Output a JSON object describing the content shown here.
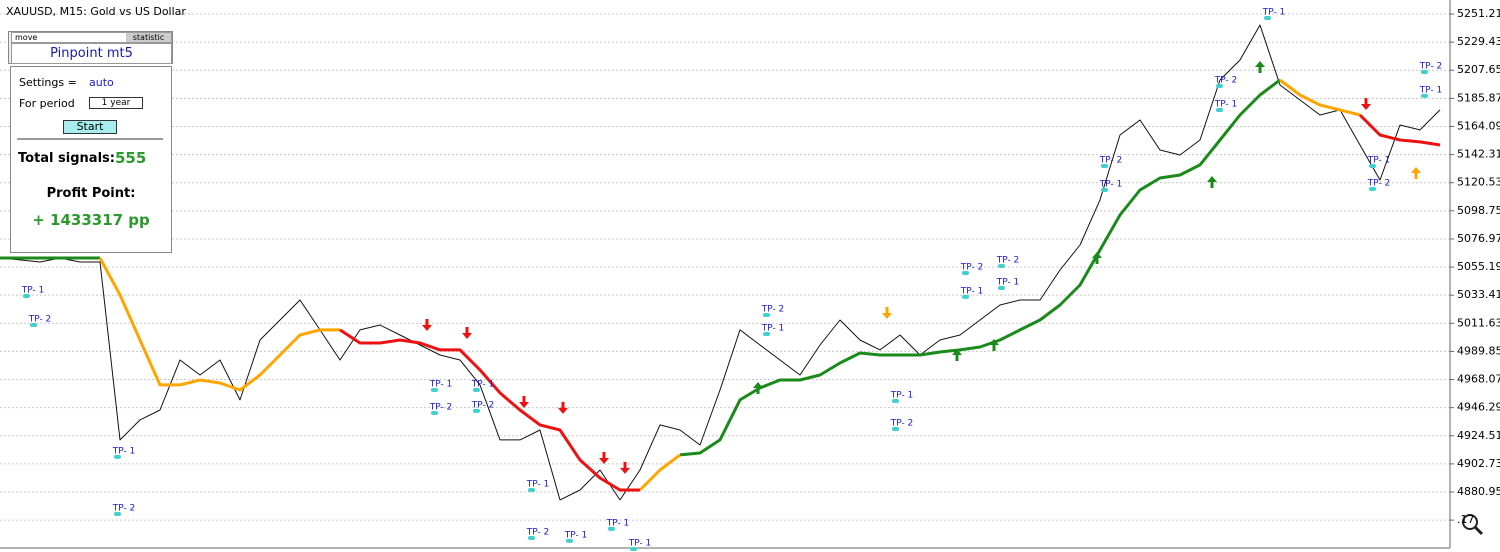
{
  "chart_data": {
    "type": "line",
    "title": "XAUUSD, M15:  Gold vs US Dollar",
    "xlim": [
      0,
      145
    ],
    "ylim": [
      4837.58,
      5262.05
    ],
    "yticks": [
      5251.21,
      5229.43,
      5207.65,
      5185.87,
      5164.09,
      5142.31,
      5120.53,
      5098.75,
      5076.97,
      5055.19,
      5033.41,
      5011.63,
      4989.85,
      4968.07,
      4946.29,
      4924.51,
      4902.73,
      4880.95,
      {
        "value": 4859.17,
        "label": ".17"
      }
    ],
    "grid": true,
    "x": [
      0,
      2,
      4,
      6,
      8,
      10,
      12,
      14,
      16,
      18,
      20,
      22,
      24,
      26,
      28,
      30,
      32,
      34,
      36,
      38,
      40,
      42,
      44,
      46,
      48,
      50,
      52,
      54,
      56,
      58,
      60,
      62,
      64,
      66,
      68,
      70,
      72,
      74,
      76,
      78,
      80,
      82,
      84,
      86,
      88,
      90,
      92,
      94,
      96,
      98,
      100,
      102,
      104,
      106,
      108,
      110,
      112,
      114,
      116,
      118,
      120,
      122,
      124,
      126,
      128,
      130,
      132,
      134,
      136,
      138,
      140,
      142,
      144
    ],
    "series": [
      {
        "color": "#111111",
        "values": [
          5062.2,
          5060.7,
          5059.1,
          5062.2,
          5059.1,
          5059.1,
          4921.3,
          4936.8,
          4944.5,
          4983.2,
          4971.6,
          4983.2,
          4952.3,
          4998.7,
          5014.2,
          5029.7,
          5006.5,
          4983.2,
          5006.5,
          5010.3,
          5002.6,
          4994.8,
          4987.1,
          4983.2,
          4963.9,
          4921.3,
          4921.3,
          4929.0,
          4874.8,
          4882.5,
          4898.0,
          4874.8,
          4898.0,
          4932.9,
          4929.0,
          4917.4,
          4960.0,
          5006.5,
          4994.8,
          4983.2,
          4971.6,
          4994.8,
          5014.2,
          4998.7,
          4991.0,
          5002.6,
          4987.1,
          4998.7,
          5002.6,
          5014.2,
          5025.8,
          5029.7,
          5029.7,
          5052.9,
          5072.3,
          5107.2,
          5157.5,
          5169.1,
          5145.9,
          5142.0,
          5153.6,
          5200.1,
          5215.6,
          5242.7,
          5196.2,
          5184.6,
          5173.0,
          5176.9,
          5149.7,
          5122.6,
          5165.2,
          5161.4,
          5176.9
        ]
      },
      {
        "color": "#1a8a1a",
        "values": [
          5062.2,
          5062.2,
          5062.2,
          5062.2,
          5062.2,
          5062.2,
          null,
          null,
          null,
          null,
          null,
          null,
          null,
          null,
          null,
          null,
          null,
          null,
          null,
          null,
          null,
          null,
          null,
          null,
          null,
          null,
          null,
          null,
          null,
          null,
          null,
          null,
          null,
          null,
          4909.7,
          4911.2,
          4921.3,
          4952.3,
          4961.6,
          4967.7,
          4967.7,
          4971.6,
          4980.9,
          4988.6,
          4987.1,
          4987.1,
          4987.1,
          4989.4,
          4991.0,
          4993.3,
          4998.7,
          5006.5,
          5014.2,
          5025.8,
          5041.3,
          5068.4,
          5095.5,
          5114.9,
          5124.2,
          5126.5,
          5134.3,
          5153.6,
          5173.0,
          5188.5,
          5200.1,
          null,
          null,
          null,
          null,
          null,
          null,
          null,
          null
        ]
      },
      {
        "color": "#ffa500",
        "values": [
          null,
          null,
          null,
          null,
          null,
          5062.2,
          5033.6,
          4998.7,
          4963.9,
          4963.9,
          4967.7,
          4965.4,
          4960.0,
          4971.6,
          4987.1,
          5002.6,
          5006.5,
          5006.5,
          null,
          null,
          null,
          null,
          null,
          null,
          null,
          null,
          null,
          null,
          null,
          null,
          null,
          null,
          4882.5,
          4898.0,
          4909.7,
          null,
          null,
          null,
          null,
          null,
          null,
          null,
          null,
          null,
          null,
          null,
          null,
          null,
          null,
          null,
          null,
          null,
          null,
          null,
          null,
          null,
          null,
          null,
          null,
          null,
          null,
          null,
          null,
          null,
          5200.1,
          5188.5,
          5180.7,
          5176.9,
          5173.0,
          null,
          null,
          null,
          null
        ]
      },
      {
        "color": "#ee1111",
        "values": [
          null,
          null,
          null,
          null,
          null,
          null,
          null,
          null,
          null,
          null,
          null,
          null,
          null,
          null,
          null,
          null,
          null,
          5006.5,
          4996.4,
          4996.4,
          4998.7,
          4996.4,
          4991.0,
          4991.0,
          4975.5,
          4957.7,
          4944.5,
          4932.9,
          4929.0,
          4905.8,
          4891.8,
          4882.5,
          4882.5,
          null,
          null,
          null,
          null,
          null,
          null,
          null,
          null,
          null,
          null,
          null,
          null,
          null,
          null,
          null,
          null,
          null,
          null,
          null,
          null,
          null,
          null,
          null,
          null,
          null,
          null,
          null,
          null,
          null,
          null,
          null,
          null,
          null,
          null,
          null,
          5173.0,
          5157.5,
          5153.6,
          5152.1,
          5149.7
        ]
      }
    ],
    "signals": [
      {
        "x": 42.7,
        "value": 5010.3,
        "direction": "down",
        "color": "#ee1111"
      },
      {
        "x": 46.7,
        "value": 5004.1,
        "direction": "down",
        "color": "#ee1111"
      },
      {
        "x": 52.4,
        "value": 4950.7,
        "direction": "down",
        "color": "#ee1111"
      },
      {
        "x": 56.3,
        "value": 4946.1,
        "direction": "down",
        "color": "#ee1111"
      },
      {
        "x": 60.4,
        "value": 4907.3,
        "direction": "down",
        "color": "#ee1111"
      },
      {
        "x": 62.5,
        "value": 4899.6,
        "direction": "down",
        "color": "#ee1111"
      },
      {
        "x": 136.6,
        "value": 5181.5,
        "direction": "down",
        "color": "#ee1111"
      },
      {
        "x": 88.7,
        "value": 5019.6,
        "direction": "down",
        "color": "#ffa500"
      },
      {
        "x": 75.8,
        "value": 4961.5,
        "direction": "up",
        "color": "#1a8a1a"
      },
      {
        "x": 95.7,
        "value": 4987.1,
        "direction": "up",
        "color": "#1a8a1a"
      },
      {
        "x": 99.4,
        "value": 4994.8,
        "direction": "up",
        "color": "#1a8a1a"
      },
      {
        "x": 109.7,
        "value": 5062.2,
        "direction": "up",
        "color": "#1a8a1a"
      },
      {
        "x": 121.2,
        "value": 5121.1,
        "direction": "up",
        "color": "#1a8a1a"
      },
      {
        "x": 126.0,
        "value": 5210.2,
        "direction": "up",
        "color": "#1a8a1a"
      },
      {
        "x": 141.6,
        "value": 5128.0,
        "direction": "up",
        "color": "#ffa500"
      }
    ],
    "targets": [
      {
        "label": "TP- 1",
        "x": 2.7,
        "value": 5037.4
      },
      {
        "label": "TP- 2",
        "x": 3.4,
        "value": 5015.0
      },
      {
        "label": "TP- 1",
        "x": 11.8,
        "value": 4912.8
      },
      {
        "label": "TP- 2",
        "x": 11.8,
        "value": 4868.6
      },
      {
        "label": "TP- 1",
        "x": 43.5,
        "value": 4964.6
      },
      {
        "label": "TP- 2",
        "x": 43.5,
        "value": 4946.8
      },
      {
        "label": "TP- 1",
        "x": 47.7,
        "value": 4964.6
      },
      {
        "label": "TP- 2",
        "x": 47.7,
        "value": 4948.4
      },
      {
        "label": "TP- 1",
        "x": 53.2,
        "value": 4887.2
      },
      {
        "label": "TP- 2",
        "x": 53.2,
        "value": 4850.0
      },
      {
        "label": "TP- 1",
        "x": 57.0,
        "value": 4847.7
      },
      {
        "label": "TP- 1",
        "x": 61.2,
        "value": 4857.0
      },
      {
        "label": "TP- 1",
        "x": 63.4,
        "value": 4841.5
      },
      {
        "label": "TP- 2",
        "x": 76.7,
        "value": 5022.7
      },
      {
        "label": "TP- 1",
        "x": 76.7,
        "value": 5008.0
      },
      {
        "label": "TP- 1",
        "x": 89.6,
        "value": 4956.1
      },
      {
        "label": "TP- 2",
        "x": 89.6,
        "value": 4934.4
      },
      {
        "label": "TP- 2",
        "x": 96.6,
        "value": 5055.2
      },
      {
        "label": "TP- 1",
        "x": 96.6,
        "value": 5036.7
      },
      {
        "label": "TP- 2",
        "x": 100.2,
        "value": 5060.7
      },
      {
        "label": "TP- 1",
        "x": 100.2,
        "value": 5043.6
      },
      {
        "label": "TP- 2",
        "x": 110.5,
        "value": 5138.1
      },
      {
        "label": "TP- 1",
        "x": 110.5,
        "value": 5119.5
      },
      {
        "label": "TP- 2",
        "x": 122.0,
        "value": 5200.1
      },
      {
        "label": "TP- 1",
        "x": 122.0,
        "value": 5181.5
      },
      {
        "label": "TP- 1",
        "x": 126.8,
        "value": 5252.8
      },
      {
        "label": "TP- 2",
        "x": 142.5,
        "value": 5210.9
      },
      {
        "label": "TP- 1",
        "x": 142.5,
        "value": 5192.4
      },
      {
        "label": "TP- 1",
        "x": 137.3,
        "value": 5138.1
      },
      {
        "label": "TP- 2",
        "x": 137.3,
        "value": 5120.3
      }
    ]
  },
  "panel": {
    "move": "move",
    "statistic": "statistic",
    "name": "Pinpoint mt5",
    "settings_label": "Settings =",
    "settings_value": "auto",
    "period_label": "For period",
    "period_value": "1 year",
    "start": "Start",
    "signals_label": "Total signals:",
    "signals_value": "555",
    "profit_label": "Profit Point:",
    "profit_value": "+ 1433317 pp"
  }
}
